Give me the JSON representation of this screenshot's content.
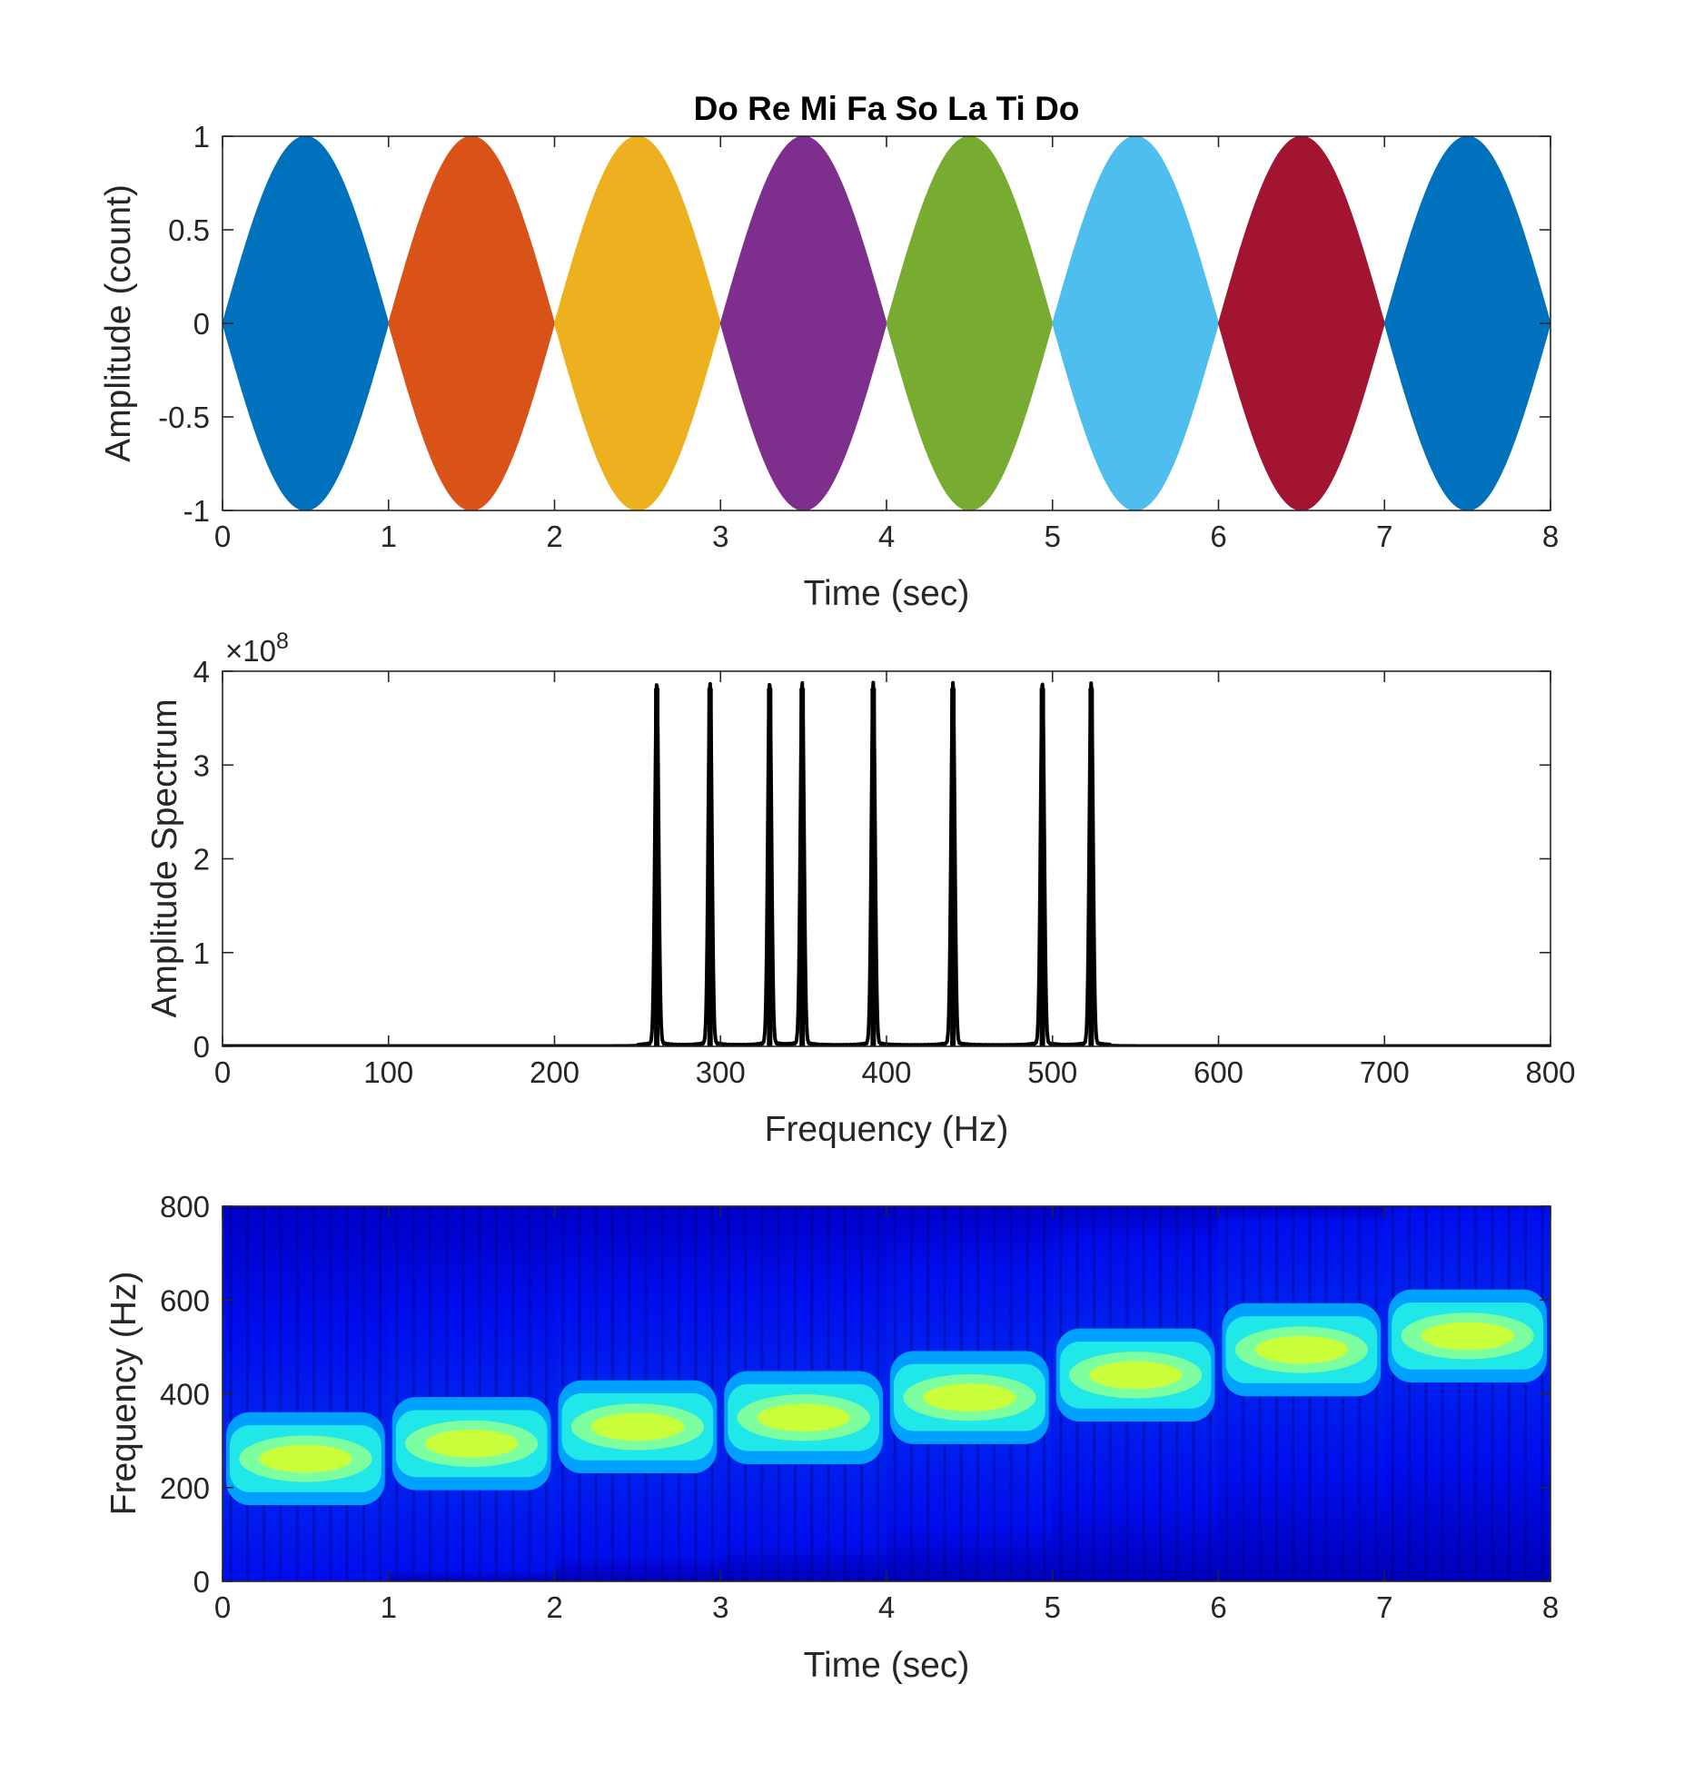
{
  "chart_data": [
    {
      "type": "area",
      "title": "Do Re Mi Fa So La Ti Do",
      "xlabel": "Time (sec)",
      "ylabel": "Amplitude (count)",
      "xlim": [
        0,
        8
      ],
      "ylim": [
        -1,
        1
      ],
      "xticks": [
        "0",
        "1",
        "2",
        "3",
        "4",
        "5",
        "6",
        "7",
        "8"
      ],
      "yticks": [
        "-1",
        "-0.5",
        "0",
        "0.5",
        "1"
      ],
      "grid": false,
      "envelope": "sine half-period per note, peak amplitude 1",
      "series": [
        {
          "start": 0,
          "end": 1,
          "peak": 1,
          "color": "#0072BD"
        },
        {
          "start": 1,
          "end": 2,
          "peak": 1,
          "color": "#D95319"
        },
        {
          "start": 2,
          "end": 3,
          "peak": 1,
          "color": "#EDB120"
        },
        {
          "start": 3,
          "end": 4,
          "peak": 1,
          "color": "#7E2F8E"
        },
        {
          "start": 4,
          "end": 5,
          "peak": 1,
          "color": "#77AC30"
        },
        {
          "start": 5,
          "end": 6,
          "peak": 1,
          "color": "#4DBEEE"
        },
        {
          "start": 6,
          "end": 7,
          "peak": 1,
          "color": "#A2142F"
        },
        {
          "start": 7,
          "end": 8,
          "peak": 1,
          "color": "#0072BD"
        }
      ]
    },
    {
      "type": "line",
      "xlabel": "Frequency (Hz)",
      "ylabel": "Amplitude Spectrum",
      "exponent_label": "×10",
      "exponent_value": "8",
      "xlim": [
        0,
        800
      ],
      "ylim": [
        0,
        4
      ],
      "xticks": [
        "0",
        "100",
        "200",
        "300",
        "400",
        "500",
        "600",
        "700",
        "800"
      ],
      "yticks": [
        "0",
        "1",
        "2",
        "3",
        "4"
      ],
      "grid": false,
      "line_color": "#000000",
      "peaks": [
        {
          "x": 261.6,
          "y": 3.82
        },
        {
          "x": 293.7,
          "y": 3.82
        },
        {
          "x": 329.6,
          "y": 3.82
        },
        {
          "x": 349.2,
          "y": 3.82
        },
        {
          "x": 392.0,
          "y": 3.82
        },
        {
          "x": 440.0,
          "y": 3.82
        },
        {
          "x": 493.9,
          "y": 3.82
        },
        {
          "x": 523.3,
          "y": 3.82
        }
      ]
    },
    {
      "type": "heatmap",
      "xlabel": "Time (sec)",
      "ylabel": "Frequency (Hz)",
      "xlim": [
        0,
        8
      ],
      "ylim": [
        0,
        800
      ],
      "xticks": [
        "0",
        "1",
        "2",
        "3",
        "4",
        "5",
        "6",
        "7",
        "8"
      ],
      "yticks": [
        "0",
        "200",
        "400",
        "600",
        "800"
      ],
      "colormap": "jet",
      "segments": [
        {
          "start": 0,
          "end": 1,
          "freq": 261.6
        },
        {
          "start": 1,
          "end": 2,
          "freq": 293.7
        },
        {
          "start": 2,
          "end": 3,
          "freq": 329.6
        },
        {
          "start": 3,
          "end": 4,
          "freq": 349.2
        },
        {
          "start": 4,
          "end": 5,
          "freq": 392.0
        },
        {
          "start": 5,
          "end": 6,
          "freq": 440.0
        },
        {
          "start": 6,
          "end": 7,
          "freq": 493.9
        },
        {
          "start": 7,
          "end": 8,
          "freq": 523.3
        }
      ]
    }
  ]
}
